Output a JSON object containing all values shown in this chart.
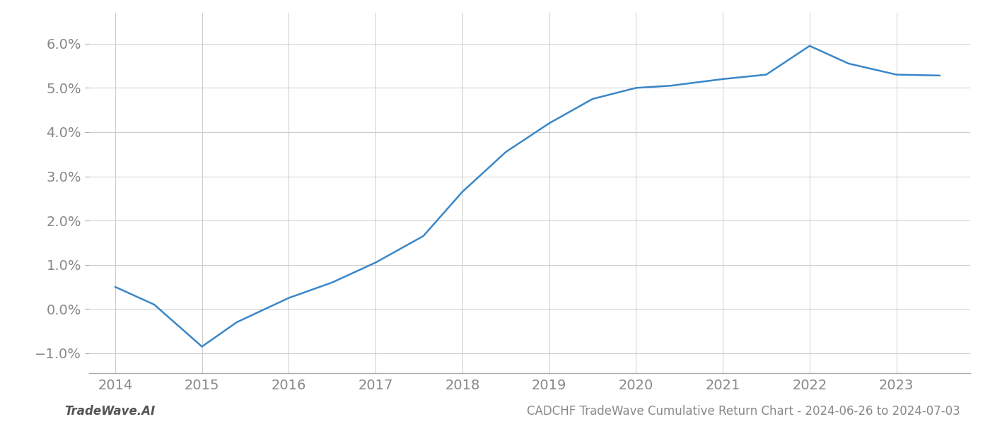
{
  "title": "CADCHF TradeWave Cumulative Return Chart - 2024-06-26 to 2024-07-03",
  "watermark": "TradeWave.AI",
  "line_color": "#3a87c8",
  "background_color": "#ffffff",
  "grid_color": "#cccccc",
  "x_values": [
    2014.0,
    2014.45,
    2015.0,
    2015.4,
    2016.0,
    2016.5,
    2017.0,
    2017.55,
    2018.0,
    2018.5,
    2019.0,
    2019.5,
    2020.0,
    2020.4,
    2021.0,
    2021.5,
    2022.0,
    2022.45,
    2023.0,
    2023.5
  ],
  "y_values": [
    0.5,
    0.1,
    -0.85,
    -0.3,
    0.25,
    0.6,
    1.05,
    1.65,
    2.65,
    3.55,
    4.2,
    4.75,
    5.0,
    5.05,
    5.2,
    5.3,
    5.95,
    5.55,
    5.3,
    5.28
  ],
  "xlim": [
    2013.7,
    2023.85
  ],
  "ylim": [
    -1.45,
    6.7
  ],
  "yticks": [
    -1.0,
    0.0,
    1.0,
    2.0,
    3.0,
    4.0,
    5.0,
    6.0
  ],
  "xticks": [
    2014,
    2015,
    2016,
    2017,
    2018,
    2019,
    2020,
    2021,
    2022,
    2023
  ],
  "tick_label_color": "#888888",
  "tick_fontsize": 14,
  "title_fontsize": 12,
  "watermark_fontsize": 12,
  "line_width": 1.8,
  "spine_color": "#aaaaaa",
  "grid_linewidth": 0.7
}
